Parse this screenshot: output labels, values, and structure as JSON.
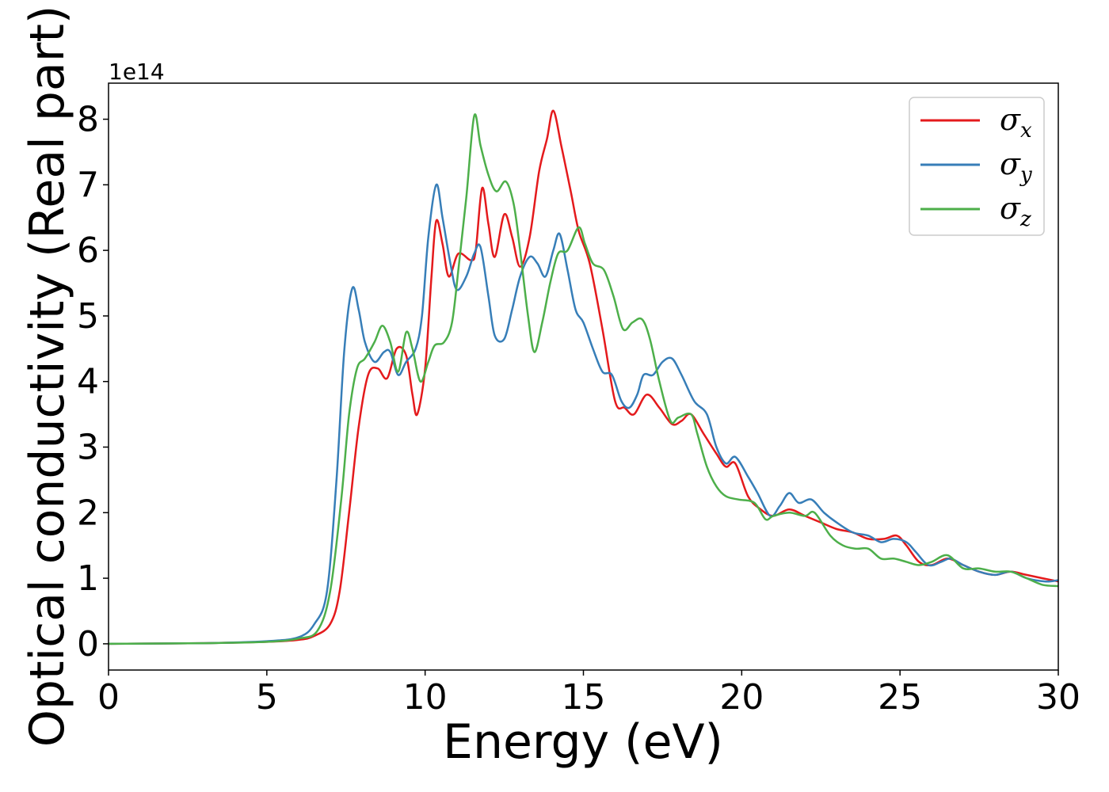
{
  "chart_data": {
    "type": "line",
    "title": "",
    "xlabel": "Energy (eV)",
    "ylabel": "Optical conductivity (Real part)",
    "y_offset_label": "1e14",
    "y_scale": 100000000000000.0,
    "xlim": [
      0,
      30
    ],
    "ylim": [
      -0.4,
      8.55
    ],
    "x_ticks": [
      0,
      5,
      10,
      15,
      20,
      25,
      30
    ],
    "x_tick_labels": [
      "0",
      "5",
      "10",
      "15",
      "20",
      "25",
      "30"
    ],
    "y_ticks": [
      0,
      1,
      2,
      3,
      4,
      5,
      6,
      7,
      8
    ],
    "y_tick_labels": [
      "0",
      "1",
      "2",
      "3",
      "4",
      "5",
      "6",
      "7",
      "8"
    ],
    "grid": false,
    "legend_position": "top-right",
    "series": [
      {
        "name": "x",
        "color": "#e41a1c",
        "points": [
          [
            0,
            0
          ],
          [
            3,
            0.01
          ],
          [
            5,
            0.03
          ],
          [
            6,
            0.06
          ],
          [
            6.5,
            0.12
          ],
          [
            7,
            0.3
          ],
          [
            7.3,
            0.8
          ],
          [
            7.6,
            2.0
          ],
          [
            7.9,
            3.3
          ],
          [
            8.2,
            4.1
          ],
          [
            8.5,
            4.2
          ],
          [
            8.8,
            4.05
          ],
          [
            9.1,
            4.5
          ],
          [
            9.4,
            4.4
          ],
          [
            9.6,
            3.8
          ],
          [
            9.75,
            3.5
          ],
          [
            10,
            4.2
          ],
          [
            10.2,
            5.6
          ],
          [
            10.35,
            6.45
          ],
          [
            10.55,
            6.1
          ],
          [
            10.75,
            5.6
          ],
          [
            11.05,
            5.95
          ],
          [
            11.45,
            5.85
          ],
          [
            11.6,
            6.0
          ],
          [
            11.8,
            6.95
          ],
          [
            12.0,
            6.4
          ],
          [
            12.2,
            5.9
          ],
          [
            12.5,
            6.55
          ],
          [
            12.75,
            6.2
          ],
          [
            13.0,
            5.75
          ],
          [
            13.3,
            6.2
          ],
          [
            13.6,
            7.2
          ],
          [
            13.85,
            7.7
          ],
          [
            14.05,
            8.13
          ],
          [
            14.3,
            7.6
          ],
          [
            14.6,
            6.9
          ],
          [
            14.85,
            6.3
          ],
          [
            15.2,
            5.8
          ],
          [
            15.6,
            4.8
          ],
          [
            16.0,
            3.7
          ],
          [
            16.3,
            3.6
          ],
          [
            16.6,
            3.5
          ],
          [
            17.0,
            3.8
          ],
          [
            17.4,
            3.6
          ],
          [
            17.8,
            3.35
          ],
          [
            18.1,
            3.4
          ],
          [
            18.4,
            3.5
          ],
          [
            18.8,
            3.2
          ],
          [
            19.2,
            2.9
          ],
          [
            19.5,
            2.7
          ],
          [
            19.8,
            2.75
          ],
          [
            20.2,
            2.25
          ],
          [
            20.6,
            2.05
          ],
          [
            21.0,
            1.95
          ],
          [
            21.5,
            2.05
          ],
          [
            22.0,
            1.95
          ],
          [
            22.5,
            1.85
          ],
          [
            23.0,
            1.75
          ],
          [
            23.5,
            1.7
          ],
          [
            24.0,
            1.6
          ],
          [
            24.5,
            1.6
          ],
          [
            24.9,
            1.65
          ],
          [
            25.2,
            1.5
          ],
          [
            25.6,
            1.25
          ],
          [
            26.0,
            1.2
          ],
          [
            26.5,
            1.3
          ],
          [
            27.0,
            1.2
          ],
          [
            27.5,
            1.1
          ],
          [
            28.0,
            1.05
          ],
          [
            28.5,
            1.1
          ],
          [
            29.0,
            1.05
          ],
          [
            29.5,
            1.0
          ],
          [
            30,
            0.95
          ]
        ]
      },
      {
        "name": "y",
        "color": "#377eb8",
        "points": [
          [
            0,
            0
          ],
          [
            3,
            0.01
          ],
          [
            5,
            0.04
          ],
          [
            6,
            0.1
          ],
          [
            6.5,
            0.3
          ],
          [
            6.9,
            0.8
          ],
          [
            7.2,
            2.5
          ],
          [
            7.45,
            4.5
          ],
          [
            7.7,
            5.42
          ],
          [
            7.9,
            5.1
          ],
          [
            8.1,
            4.6
          ],
          [
            8.4,
            4.3
          ],
          [
            8.7,
            4.45
          ],
          [
            8.9,
            4.45
          ],
          [
            9.15,
            4.1
          ],
          [
            9.4,
            4.3
          ],
          [
            9.7,
            4.5
          ],
          [
            9.9,
            5.0
          ],
          [
            10.1,
            6.2
          ],
          [
            10.35,
            7.0
          ],
          [
            10.55,
            6.5
          ],
          [
            10.8,
            5.8
          ],
          [
            11.0,
            5.4
          ],
          [
            11.3,
            5.6
          ],
          [
            11.55,
            5.95
          ],
          [
            11.75,
            6.05
          ],
          [
            12.0,
            5.3
          ],
          [
            12.2,
            4.7
          ],
          [
            12.5,
            4.65
          ],
          [
            12.75,
            5.1
          ],
          [
            13.0,
            5.6
          ],
          [
            13.3,
            5.9
          ],
          [
            13.55,
            5.8
          ],
          [
            13.8,
            5.6
          ],
          [
            14.05,
            6.0
          ],
          [
            14.25,
            6.25
          ],
          [
            14.5,
            5.7
          ],
          [
            14.75,
            5.1
          ],
          [
            15.0,
            4.9
          ],
          [
            15.3,
            4.5
          ],
          [
            15.6,
            4.15
          ],
          [
            15.9,
            4.1
          ],
          [
            16.2,
            3.7
          ],
          [
            16.45,
            3.6
          ],
          [
            16.7,
            3.8
          ],
          [
            16.9,
            4.1
          ],
          [
            17.2,
            4.1
          ],
          [
            17.5,
            4.3
          ],
          [
            17.8,
            4.35
          ],
          [
            18.1,
            4.1
          ],
          [
            18.5,
            3.7
          ],
          [
            18.9,
            3.5
          ],
          [
            19.2,
            3.0
          ],
          [
            19.5,
            2.75
          ],
          [
            19.8,
            2.85
          ],
          [
            20.2,
            2.55
          ],
          [
            20.5,
            2.3
          ],
          [
            20.9,
            1.95
          ],
          [
            21.2,
            2.1
          ],
          [
            21.5,
            2.3
          ],
          [
            21.8,
            2.15
          ],
          [
            22.2,
            2.2
          ],
          [
            22.6,
            2.0
          ],
          [
            23.0,
            1.85
          ],
          [
            23.5,
            1.7
          ],
          [
            24.0,
            1.65
          ],
          [
            24.4,
            1.55
          ],
          [
            24.8,
            1.6
          ],
          [
            25.2,
            1.55
          ],
          [
            25.5,
            1.4
          ],
          [
            25.9,
            1.2
          ],
          [
            26.3,
            1.25
          ],
          [
            26.6,
            1.3
          ],
          [
            27.0,
            1.2
          ],
          [
            27.5,
            1.1
          ],
          [
            28.0,
            1.05
          ],
          [
            28.5,
            1.1
          ],
          [
            29.0,
            1.0
          ],
          [
            29.6,
            0.95
          ],
          [
            30,
            0.97
          ]
        ]
      },
      {
        "name": "z",
        "color": "#4daf4a",
        "points": [
          [
            0,
            0
          ],
          [
            3,
            0.01
          ],
          [
            5,
            0.03
          ],
          [
            6,
            0.08
          ],
          [
            6.6,
            0.2
          ],
          [
            7.0,
            0.8
          ],
          [
            7.35,
            2.2
          ],
          [
            7.6,
            3.5
          ],
          [
            7.85,
            4.2
          ],
          [
            8.1,
            4.35
          ],
          [
            8.4,
            4.6
          ],
          [
            8.65,
            4.85
          ],
          [
            8.9,
            4.6
          ],
          [
            9.15,
            4.15
          ],
          [
            9.4,
            4.75
          ],
          [
            9.6,
            4.5
          ],
          [
            9.85,
            4.0
          ],
          [
            10.1,
            4.3
          ],
          [
            10.3,
            4.55
          ],
          [
            10.6,
            4.6
          ],
          [
            10.85,
            4.9
          ],
          [
            11.05,
            5.7
          ],
          [
            11.3,
            6.8
          ],
          [
            11.55,
            8.05
          ],
          [
            11.75,
            7.6
          ],
          [
            12.0,
            7.15
          ],
          [
            12.25,
            6.9
          ],
          [
            12.55,
            7.05
          ],
          [
            12.8,
            6.7
          ],
          [
            13.0,
            6.0
          ],
          [
            13.25,
            5.0
          ],
          [
            13.45,
            4.45
          ],
          [
            13.7,
            4.9
          ],
          [
            13.95,
            5.5
          ],
          [
            14.2,
            5.95
          ],
          [
            14.5,
            6.0
          ],
          [
            14.85,
            6.35
          ],
          [
            15.05,
            6.1
          ],
          [
            15.3,
            5.8
          ],
          [
            15.65,
            5.7
          ],
          [
            15.95,
            5.3
          ],
          [
            16.25,
            4.8
          ],
          [
            16.55,
            4.9
          ],
          [
            16.85,
            4.95
          ],
          [
            17.1,
            4.65
          ],
          [
            17.4,
            4.0
          ],
          [
            17.75,
            3.4
          ],
          [
            18.0,
            3.45
          ],
          [
            18.4,
            3.5
          ],
          [
            18.6,
            3.2
          ],
          [
            18.9,
            2.7
          ],
          [
            19.2,
            2.4
          ],
          [
            19.5,
            2.25
          ],
          [
            19.9,
            2.2
          ],
          [
            20.4,
            2.15
          ],
          [
            20.75,
            1.9
          ],
          [
            21.0,
            1.95
          ],
          [
            21.5,
            2.0
          ],
          [
            22.0,
            1.95
          ],
          [
            22.3,
            2.0
          ],
          [
            22.8,
            1.65
          ],
          [
            23.2,
            1.5
          ],
          [
            23.6,
            1.45
          ],
          [
            24.0,
            1.45
          ],
          [
            24.4,
            1.3
          ],
          [
            24.8,
            1.3
          ],
          [
            25.2,
            1.25
          ],
          [
            25.6,
            1.2
          ],
          [
            26.0,
            1.25
          ],
          [
            26.5,
            1.35
          ],
          [
            27.0,
            1.15
          ],
          [
            27.5,
            1.15
          ],
          [
            28.0,
            1.1
          ],
          [
            28.5,
            1.1
          ],
          [
            29.0,
            1.0
          ],
          [
            29.5,
            0.9
          ],
          [
            30,
            0.88
          ]
        ]
      }
    ]
  }
}
